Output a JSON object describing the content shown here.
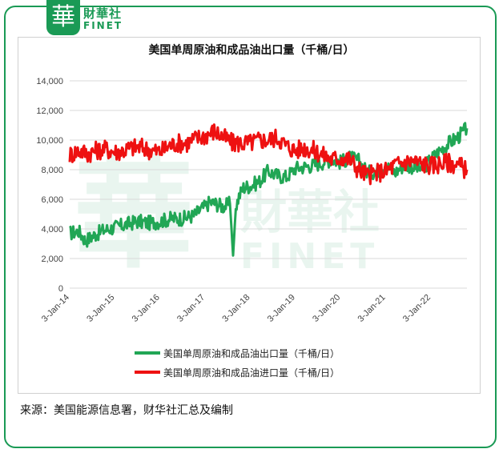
{
  "brand": {
    "logo_char": "華",
    "name_cn": "財華社",
    "name_en": "FINET"
  },
  "source_note": "来源：美国能源信息署，财华社汇总及编制",
  "colors": {
    "export": "#21a655",
    "import": "#ee1111",
    "brand": "#1a9a55"
  },
  "chart_data": {
    "type": "line",
    "title": "美国单周原油和成品油出口量（千桶/日）",
    "xlabel": "",
    "ylabel": "",
    "x_tick_labels": [
      "3-Jan-14",
      "3-Jan-15",
      "3-Jan-16",
      "3-Jan-17",
      "3-Jan-18",
      "3-Jan-19",
      "3-Jan-20",
      "3-Jan-21",
      "3-Jan-22"
    ],
    "y_tick_labels": [
      "0",
      "2,000",
      "4,000",
      "6,000",
      "8,000",
      "10,000",
      "12,000",
      "14,000"
    ],
    "ylim": [
      0,
      14000
    ],
    "xlim": [
      2014.0,
      2022.8
    ],
    "grid": "horizontal",
    "legend_position": "bottom",
    "series": [
      {
        "name": "美国单周原油和成品油出口量（千桶/日）",
        "color": "#21a655",
        "points": [
          [
            2014.0,
            3700
          ],
          [
            2014.2,
            3850
          ],
          [
            2014.35,
            3200
          ],
          [
            2014.5,
            3500
          ],
          [
            2014.75,
            3900
          ],
          [
            2015.0,
            4100
          ],
          [
            2015.25,
            4300
          ],
          [
            2015.5,
            4500
          ],
          [
            2015.75,
            4400
          ],
          [
            2016.0,
            4500
          ],
          [
            2016.25,
            4700
          ],
          [
            2016.5,
            4700
          ],
          [
            2016.75,
            4900
          ],
          [
            2016.9,
            5300
          ],
          [
            2017.0,
            5500
          ],
          [
            2017.1,
            5800
          ],
          [
            2017.25,
            5700
          ],
          [
            2017.4,
            5500
          ],
          [
            2017.55,
            5700
          ],
          [
            2017.62,
            2200
          ],
          [
            2017.68,
            5500
          ],
          [
            2017.75,
            6200
          ],
          [
            2017.85,
            6800
          ],
          [
            2018.0,
            6900
          ],
          [
            2018.2,
            7200
          ],
          [
            2018.4,
            7900
          ],
          [
            2018.6,
            7600
          ],
          [
            2018.8,
            7500
          ],
          [
            2019.0,
            8100
          ],
          [
            2019.2,
            8200
          ],
          [
            2019.4,
            8300
          ],
          [
            2019.6,
            8500
          ],
          [
            2019.8,
            8700
          ],
          [
            2020.0,
            8500
          ],
          [
            2020.2,
            8800
          ],
          [
            2020.4,
            8600
          ],
          [
            2020.6,
            7800
          ],
          [
            2020.8,
            7900
          ],
          [
            2021.0,
            8300
          ],
          [
            2021.2,
            7800
          ],
          [
            2021.4,
            8300
          ],
          [
            2021.6,
            8200
          ],
          [
            2021.8,
            8000
          ],
          [
            2022.0,
            8700
          ],
          [
            2022.2,
            9300
          ],
          [
            2022.4,
            9800
          ],
          [
            2022.6,
            10200
          ],
          [
            2022.8,
            10800
          ]
        ]
      },
      {
        "name": "美国单周原油和成品油进口量（千桶/日）",
        "color": "#ee1111",
        "points": [
          [
            2014.0,
            9000
          ],
          [
            2014.2,
            9300
          ],
          [
            2014.4,
            9100
          ],
          [
            2014.6,
            9300
          ],
          [
            2014.8,
            9400
          ],
          [
            2015.0,
            9200
          ],
          [
            2015.2,
            9300
          ],
          [
            2015.4,
            9500
          ],
          [
            2015.6,
            9500
          ],
          [
            2015.8,
            9300
          ],
          [
            2016.0,
            9200
          ],
          [
            2016.2,
            9600
          ],
          [
            2016.4,
            9800
          ],
          [
            2016.6,
            9800
          ],
          [
            2016.8,
            10100
          ],
          [
            2017.0,
            10300
          ],
          [
            2017.2,
            10600
          ],
          [
            2017.4,
            10200
          ],
          [
            2017.6,
            9800
          ],
          [
            2017.8,
            9800
          ],
          [
            2018.0,
            9800
          ],
          [
            2018.2,
            10000
          ],
          [
            2018.4,
            10000
          ],
          [
            2018.6,
            10200
          ],
          [
            2018.8,
            9600
          ],
          [
            2019.0,
            9300
          ],
          [
            2019.2,
            9500
          ],
          [
            2019.4,
            9300
          ],
          [
            2019.6,
            9000
          ],
          [
            2019.8,
            8700
          ],
          [
            2020.0,
            8800
          ],
          [
            2020.2,
            8700
          ],
          [
            2020.4,
            8000
          ],
          [
            2020.6,
            7600
          ],
          [
            2020.8,
            7800
          ],
          [
            2021.0,
            7900
          ],
          [
            2021.2,
            8300
          ],
          [
            2021.4,
            8500
          ],
          [
            2021.6,
            8600
          ],
          [
            2021.8,
            8400
          ],
          [
            2022.0,
            8300
          ],
          [
            2022.2,
            8400
          ],
          [
            2022.4,
            8500
          ],
          [
            2022.6,
            8300
          ],
          [
            2022.8,
            8000
          ]
        ]
      }
    ]
  }
}
